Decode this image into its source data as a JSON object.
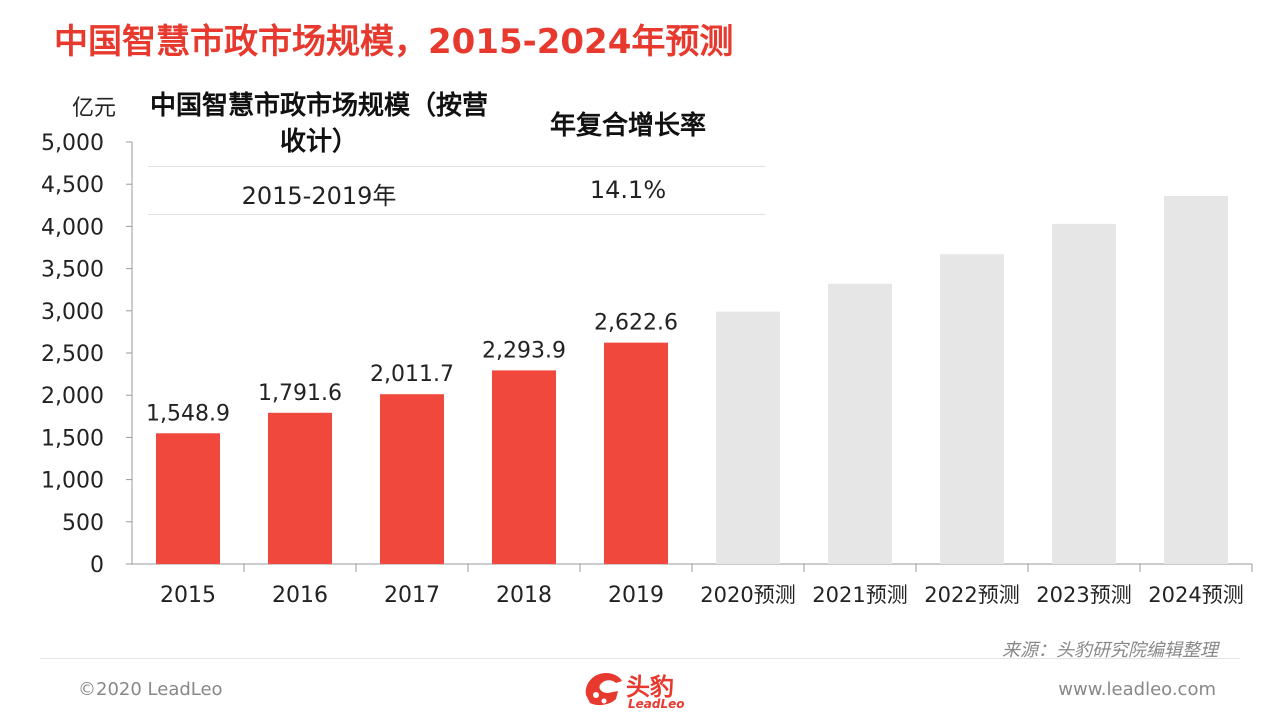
{
  "title": "中国智慧市政市场规模，2015-2024年预测",
  "unit": "亿元",
  "summary": {
    "header_left": "中国智慧市政市场规模（按营收计）",
    "header_right": "年复合增长率",
    "period": "2015-2019年",
    "cagr": "14.1%"
  },
  "chart_data": {
    "type": "bar",
    "categories": [
      "2015",
      "2016",
      "2017",
      "2018",
      "2019",
      "2020预测",
      "2021预测",
      "2022预测",
      "2023预测",
      "2024预测"
    ],
    "values": [
      1548.9,
      1791.6,
      2011.7,
      2293.9,
      2622.6,
      2990,
      3320,
      3670,
      4030,
      4360
    ],
    "data_labels": [
      "1,548.9",
      "1,791.6",
      "2,011.7",
      "2,293.9",
      "2,622.6",
      "",
      "",
      "",
      "",
      ""
    ],
    "forecast_start_index": 5,
    "ylim": [
      0,
      5000
    ],
    "yticks": [
      0,
      500,
      1000,
      1500,
      2000,
      2500,
      3000,
      3500,
      4000,
      4500,
      5000
    ],
    "ytick_labels": [
      "0",
      "500",
      "1,000",
      "1,500",
      "2,000",
      "2,500",
      "3,000",
      "3,500",
      "4,000",
      "4,500",
      "5,000"
    ],
    "colors": {
      "actual": "#f0483d",
      "forecast": "#e6e6e6"
    },
    "grid": false
  },
  "footer": {
    "source": "来源：头豹研究院编辑整理",
    "copyright": "©2020 LeadLeo",
    "website": "www.leadleo.com",
    "logo_text": "头豹",
    "logo_sub": "LeadLeo"
  }
}
